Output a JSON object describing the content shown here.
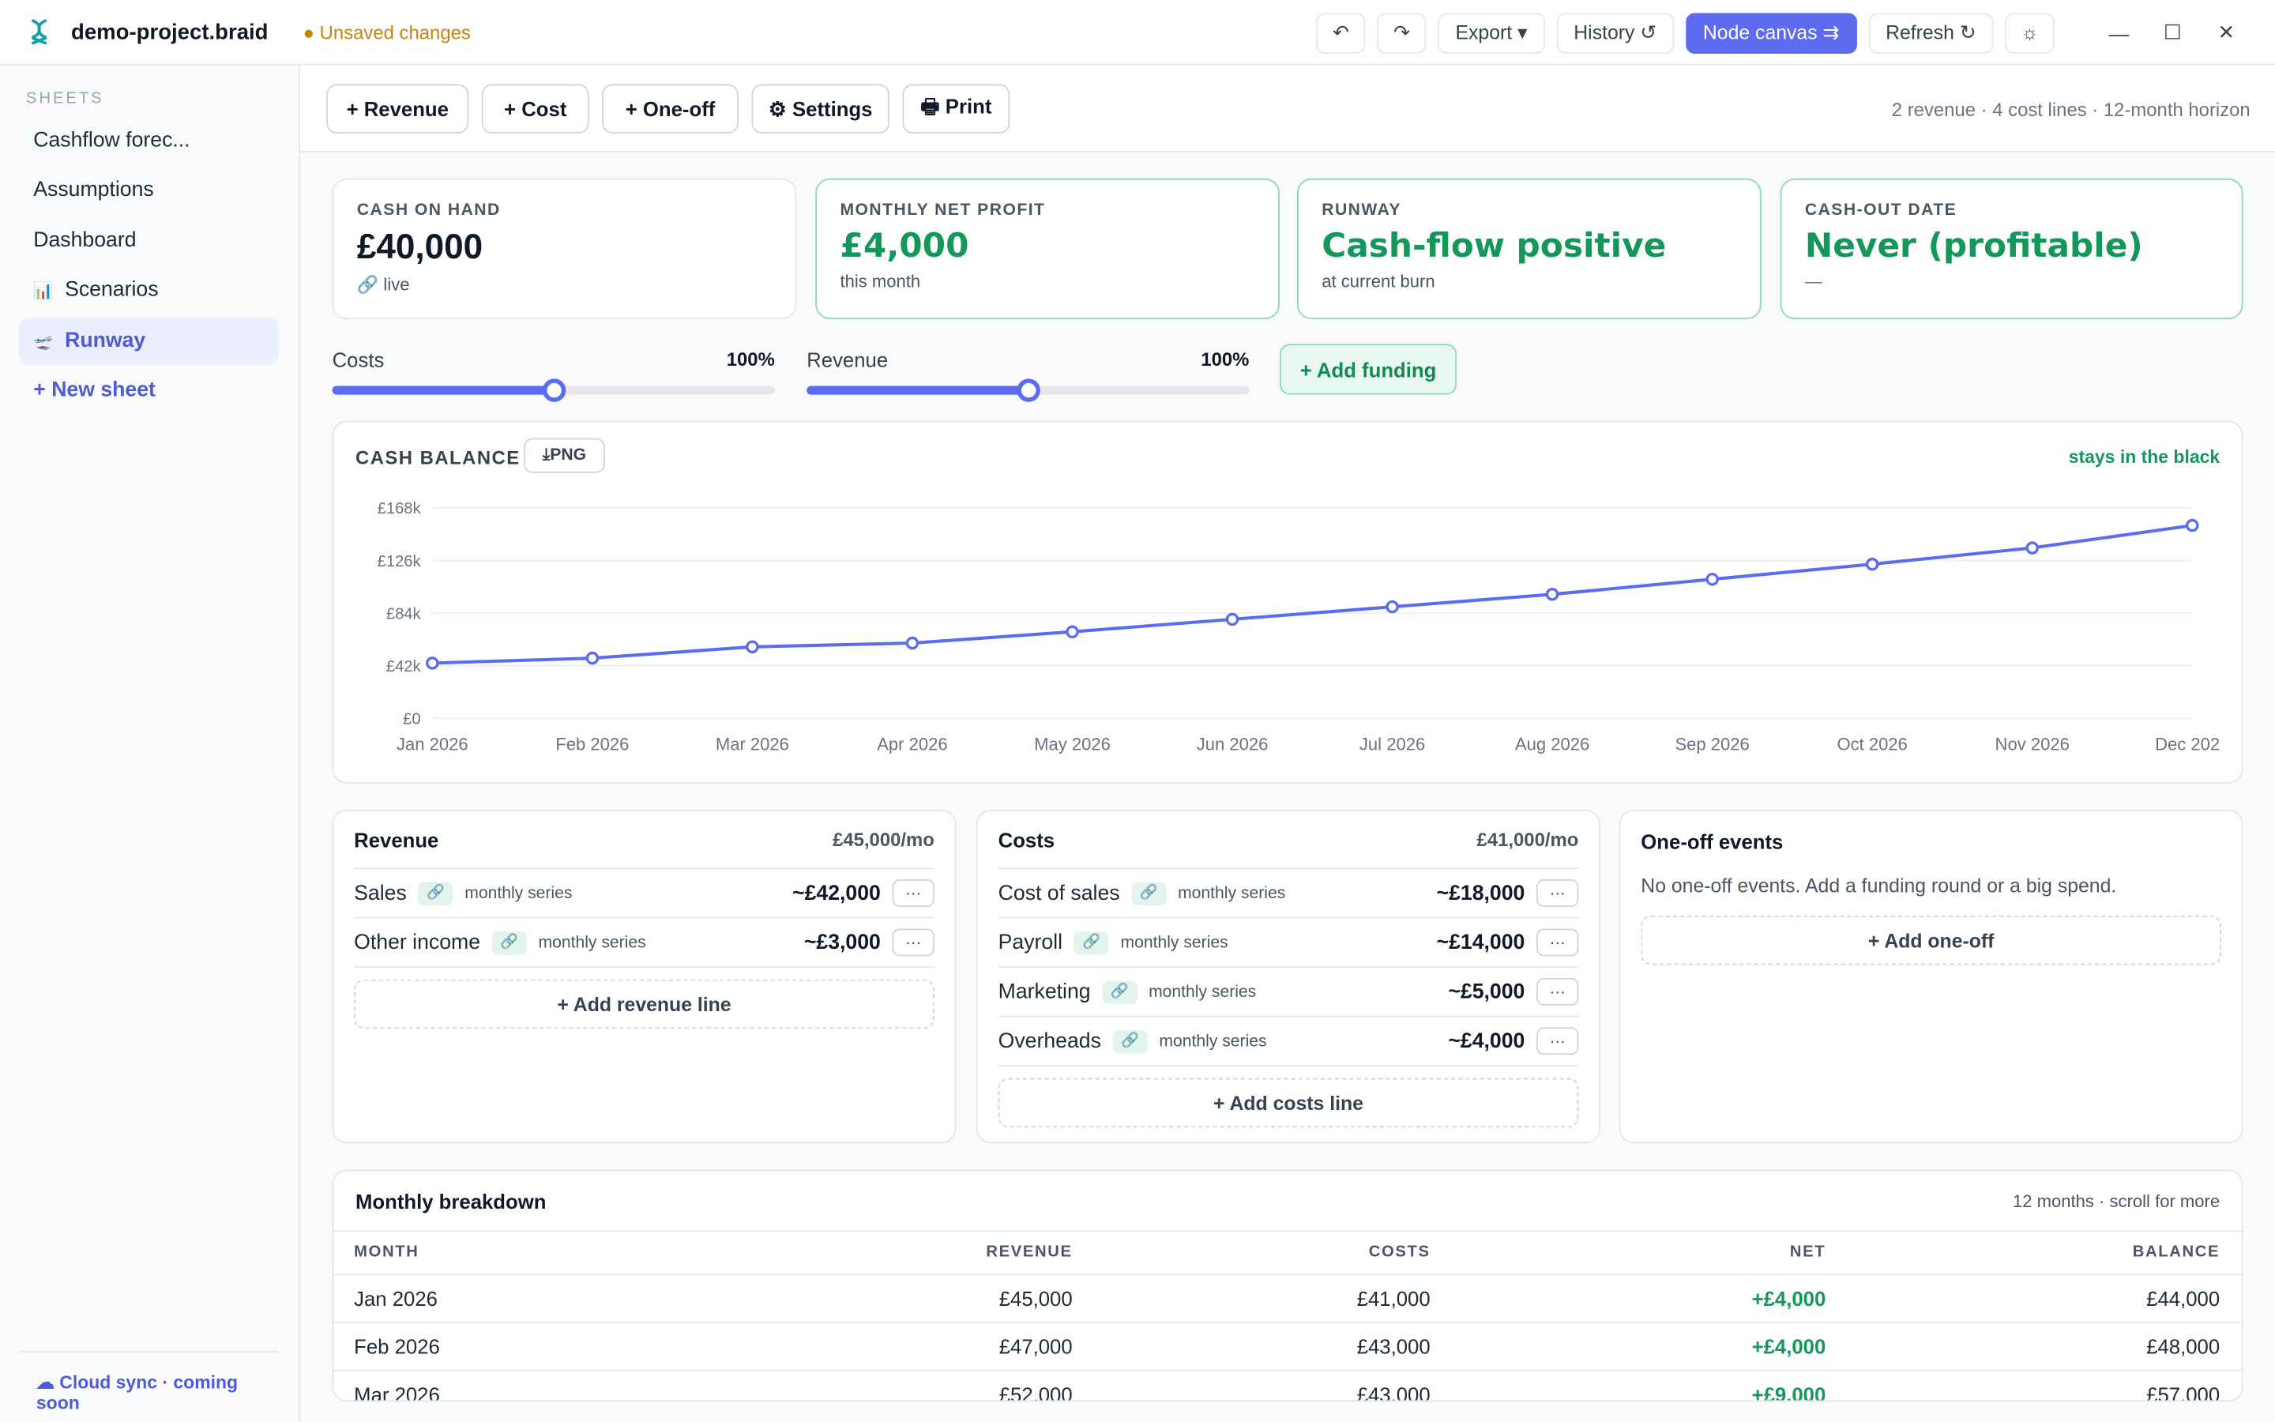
{
  "app": {
    "project_name": "demo-project.braid",
    "unsaved": "● Unsaved changes"
  },
  "titlebar": {
    "undo_icon": "↶",
    "redo_icon": "↷",
    "export_label": "Export ▾",
    "history_label": "History ↺",
    "node_canvas_label": "Node canvas ⇉",
    "refresh_label": "Refresh ↻",
    "theme_icon": "☼",
    "minimize": "—",
    "maximize": "☐",
    "close": "✕"
  },
  "sidebar": {
    "heading": "SHEETS",
    "items": [
      {
        "label": "Cashflow forec...",
        "icon": ""
      },
      {
        "label": "Assumptions",
        "icon": ""
      },
      {
        "label": "Dashboard",
        "icon": ""
      },
      {
        "label": "Scenarios",
        "icon": "📊"
      },
      {
        "label": "Runway",
        "icon": "🛫"
      }
    ],
    "new_sheet": "+ New sheet",
    "footer": "☁ Cloud sync · coming soon"
  },
  "toolbar": {
    "revenue": "+  Revenue",
    "cost": "+  Cost",
    "oneoff": "+  One-off",
    "settings": "⚙ Settings",
    "print": "🖶 Print",
    "summary": "2 revenue · 4 cost lines · 12-month horizon"
  },
  "kpis": [
    {
      "label": "CASH ON HAND",
      "value": "£40,000",
      "sub": "🔗  live"
    },
    {
      "label": "MONTHLY NET PROFIT",
      "value": "£4,000",
      "sub": "this month"
    },
    {
      "label": "RUNWAY",
      "value": "Cash-flow positive",
      "sub": "at current burn"
    },
    {
      "label": "CASH-OUT DATE",
      "value": "Never (profitable)",
      "sub": "—"
    }
  ],
  "sliders": {
    "costs": {
      "label": "Costs",
      "value_label": "100%",
      "level": 0.5
    },
    "revenue": {
      "label": "Revenue",
      "value_label": "100%",
      "level": 0.5
    },
    "add_funding": "+  Add funding"
  },
  "chart": {
    "title": "CASH BALANCE",
    "png_button": "⤓PNG",
    "status": "stays in the black",
    "accent": "#5b6cf0"
  },
  "chart_data": {
    "type": "line",
    "x": [
      "Jan 2026",
      "Feb 2026",
      "Mar 2026",
      "Apr 2026",
      "May 2026",
      "Jun 2026",
      "Jul 2026",
      "Aug 2026",
      "Sep 2026",
      "Oct 2026",
      "Nov 2026",
      "Dec 202"
    ],
    "series": [
      {
        "values": [
          44000,
          48000,
          57000,
          60000,
          69000,
          79000,
          89000,
          99000,
          111000,
          123000,
          136000,
          154000
        ]
      }
    ],
    "ytick_labels": [
      "£0",
      "£42k",
      "£84k",
      "£126k",
      "£168k"
    ],
    "ylim": [
      0,
      168000
    ],
    "grid": true
  },
  "revenue_card": {
    "title": "Revenue",
    "total": "£45,000/mo",
    "lines": [
      {
        "name": "Sales",
        "kind": "monthly series",
        "value": "~£42,000"
      },
      {
        "name": "Other income",
        "kind": "monthly series",
        "value": "~£3,000"
      }
    ],
    "add_label": "+  Add revenue line"
  },
  "costs_card": {
    "title": "Costs",
    "total": "£41,000/mo",
    "lines": [
      {
        "name": "Cost of sales",
        "kind": "monthly series",
        "value": "~£18,000"
      },
      {
        "name": "Payroll",
        "kind": "monthly series",
        "value": "~£14,000"
      },
      {
        "name": "Marketing",
        "kind": "monthly series",
        "value": "~£5,000"
      },
      {
        "name": "Overheads",
        "kind": "monthly series",
        "value": "~£4,000"
      }
    ],
    "add_label": "+  Add costs line"
  },
  "oneoff_card": {
    "title": "One-off events",
    "empty": "No one-off events. Add a funding round or a big spend.",
    "add_label": "+  Add one-off"
  },
  "monthly": {
    "title": "Monthly breakdown",
    "note": "12 months · scroll for more",
    "headers": [
      "MONTH",
      "REVENUE",
      "COSTS",
      "NET",
      "BALANCE"
    ],
    "rows": [
      [
        "Jan 2026",
        "£45,000",
        "£41,000",
        "+£4,000",
        "£44,000"
      ],
      [
        "Feb 2026",
        "£47,000",
        "£43,000",
        "+£4,000",
        "£48,000"
      ],
      [
        "Mar 2026",
        "£52,000",
        "£43,000",
        "+£9,000",
        "£57,000"
      ]
    ]
  },
  "link_icon": "🔗",
  "more_icon": "···"
}
